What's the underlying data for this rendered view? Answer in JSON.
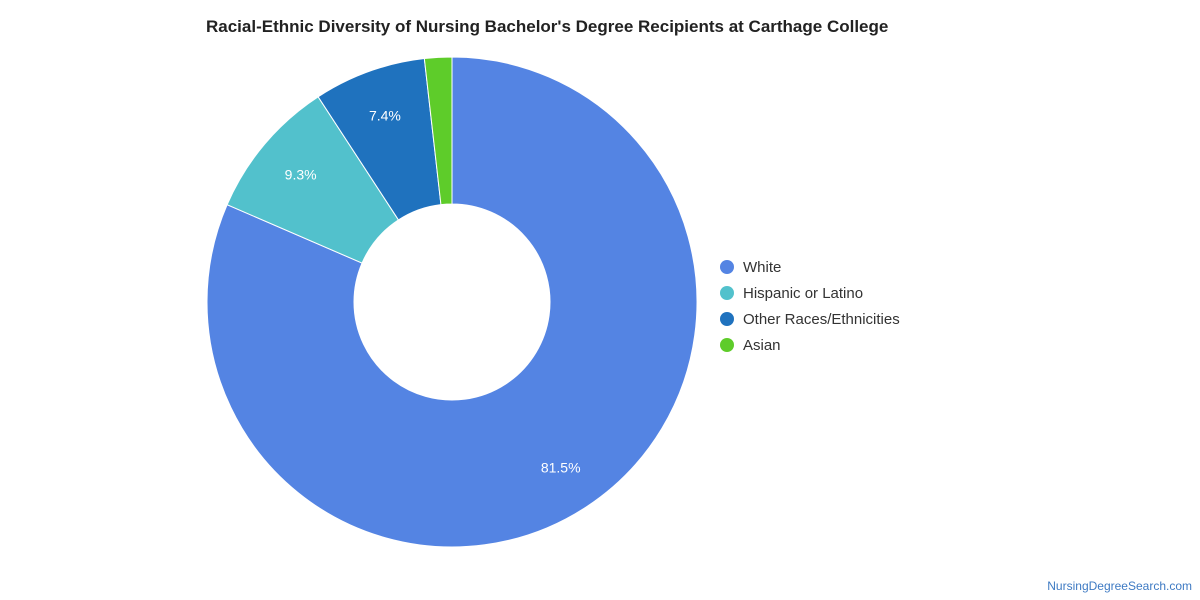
{
  "title": "Racial-Ethnic Diversity of Nursing Bachelor's Degree Recipients at Carthage College",
  "watermark": "NursingDegreeSearch.com",
  "chart_data": {
    "type": "pie",
    "style": "donut",
    "title": "Racial-Ethnic Diversity of Nursing Bachelor's Degree Recipients at Carthage College",
    "legend_position": "right",
    "slices": [
      {
        "name": "White",
        "value": 81.5,
        "label": "81.5%",
        "color": "#5484e3"
      },
      {
        "name": "Hispanic or Latino",
        "value": 9.3,
        "label": "9.3%",
        "color": "#52c1cc"
      },
      {
        "name": "Other Races/Ethnicities",
        "value": 7.4,
        "label": "7.4%",
        "color": "#1f72be"
      },
      {
        "name": "Asian",
        "value": 1.8,
        "label": "",
        "color": "#5ecc2a"
      }
    ]
  }
}
